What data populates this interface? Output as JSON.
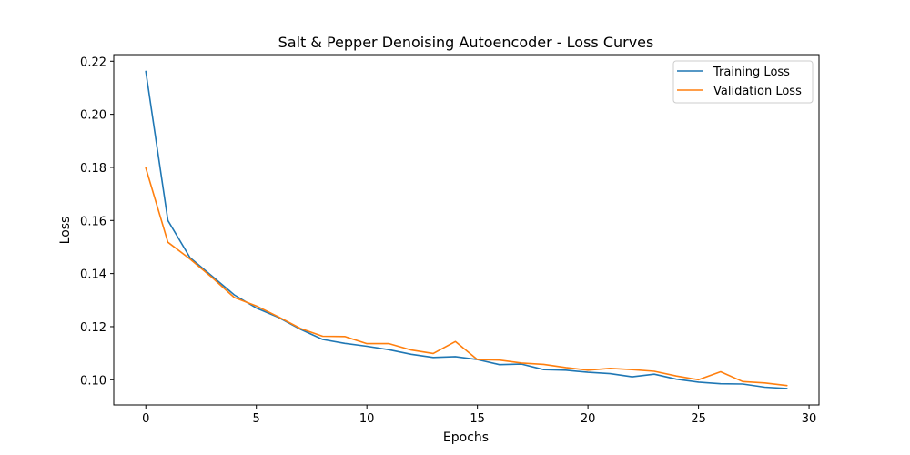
{
  "chart_data": {
    "type": "line",
    "title": "Salt & Pepper Denoising Autoencoder - Loss Curves",
    "xlabel": "Epochs",
    "ylabel": "Loss",
    "xlim": [
      -1.45,
      30.45
    ],
    "ylim": [
      0.0905,
      0.2225
    ],
    "x_ticks": [
      0,
      5,
      10,
      15,
      20,
      25,
      30
    ],
    "y_ticks": [
      0.1,
      0.12,
      0.14,
      0.16,
      0.18,
      0.2,
      0.22
    ],
    "grid": false,
    "legend": "upper right",
    "x": [
      0,
      1,
      2,
      3,
      4,
      5,
      6,
      7,
      8,
      9,
      10,
      11,
      12,
      13,
      14,
      15,
      16,
      17,
      18,
      19,
      20,
      21,
      22,
      23,
      24,
      25,
      26,
      27,
      28,
      29
    ],
    "series": [
      {
        "name": "Training Loss",
        "color": "#1f77b4",
        "values": [
          0.2162,
          0.16,
          0.146,
          0.139,
          0.132,
          0.127,
          0.1235,
          0.119,
          0.1152,
          0.1137,
          0.1126,
          0.1113,
          0.1096,
          0.1084,
          0.1087,
          0.1076,
          0.1057,
          0.1059,
          0.1038,
          0.1036,
          0.1028,
          0.1023,
          0.1011,
          0.1021,
          0.1002,
          0.0991,
          0.0985,
          0.0984,
          0.0972,
          0.0967
        ]
      },
      {
        "name": "Validation Loss",
        "color": "#ff7f0e",
        "values": [
          0.1798,
          0.1518,
          0.1455,
          0.1385,
          0.131,
          0.1278,
          0.1237,
          0.1193,
          0.1164,
          0.1163,
          0.1136,
          0.1136,
          0.1112,
          0.1099,
          0.1144,
          0.1076,
          0.1074,
          0.1063,
          0.1058,
          0.1046,
          0.1036,
          0.1043,
          0.1038,
          0.1032,
          0.1014,
          0.1,
          0.103,
          0.0993,
          0.0988,
          0.0978
        ]
      }
    ]
  }
}
